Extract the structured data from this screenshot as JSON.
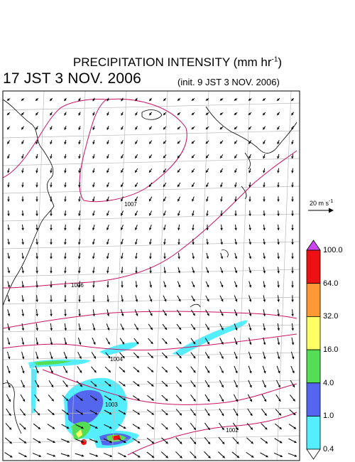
{
  "header": {
    "title": "PRECIPITATION INTENSITY (mm hr",
    "title_unit_exp": "-1",
    "title_close": ")",
    "valid_time": "17 JST 3 NOV. 2006",
    "init_time": "(init. 9 JST 3 NOV. 2006)"
  },
  "wind_reference": {
    "label": "20 m s",
    "exp": "-1"
  },
  "isobar_labels": [
    "1007",
    "1006",
    "1004",
    "1003",
    "1002"
  ],
  "color_scale": {
    "levels": [
      "100.0",
      "64.0",
      "32.0",
      "16.0",
      "4.0",
      "1.0",
      "0.4"
    ],
    "colors": [
      "#cc44ee",
      "#ee1111",
      "#ff9933",
      "#ffff66",
      "#55dd55",
      "#5566ee",
      "#55eeff",
      "#ffffff"
    ]
  }
}
